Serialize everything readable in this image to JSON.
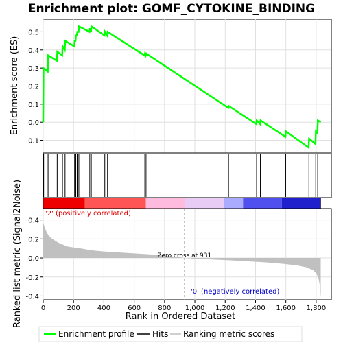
{
  "chart_data": {
    "type": "line",
    "title": "Enrichment plot: GOMF_CYTOKINE_BINDING",
    "es_panel": {
      "ylabel": "Enrichment score (ES)",
      "ylim": [
        -0.17,
        0.57
      ],
      "yticks": [
        "0.5",
        "0.4",
        "0.3",
        "0.2",
        "0.1",
        "0.0",
        "-0.1"
      ],
      "ytick_values": [
        0.5,
        0.4,
        0.3,
        0.2,
        0.1,
        0.0,
        -0.1
      ],
      "series_color": "#00ff00",
      "points": [
        [
          0,
          0.0
        ],
        [
          2,
          0.3
        ],
        [
          30,
          0.28
        ],
        [
          33,
          0.37
        ],
        [
          90,
          0.34
        ],
        [
          93,
          0.39
        ],
        [
          125,
          0.37
        ],
        [
          128,
          0.42
        ],
        [
          142,
          0.4
        ],
        [
          145,
          0.45
        ],
        [
          205,
          0.42
        ],
        [
          208,
          0.45
        ],
        [
          213,
          0.45
        ],
        [
          216,
          0.48
        ],
        [
          222,
          0.48
        ],
        [
          225,
          0.5
        ],
        [
          233,
          0.5
        ],
        [
          236,
          0.53
        ],
        [
          305,
          0.5
        ],
        [
          308,
          0.52
        ],
        [
          315,
          0.5
        ],
        [
          318,
          0.53
        ],
        [
          404,
          0.48
        ],
        [
          407,
          0.5
        ],
        [
          422,
          0.48
        ],
        [
          425,
          0.5
        ],
        [
          668,
          0.37
        ],
        [
          671,
          0.38
        ],
        [
          676,
          0.37
        ],
        [
          679,
          0.38
        ],
        [
          1220,
          0.08
        ],
        [
          1223,
          0.09
        ],
        [
          1405,
          -0.01
        ],
        [
          1408,
          0.01
        ],
        [
          1430,
          -0.01
        ],
        [
          1433,
          0.01
        ],
        [
          1597,
          -0.08
        ],
        [
          1600,
          -0.05
        ],
        [
          1750,
          -0.14
        ],
        [
          1753,
          -0.09
        ],
        [
          1795,
          -0.12
        ],
        [
          1798,
          -0.05
        ],
        [
          1808,
          -0.06
        ],
        [
          1811,
          0.01
        ],
        [
          1830,
          0.0
        ]
      ]
    },
    "hits": [
      3,
      32,
      92,
      127,
      144,
      207,
      215,
      224,
      235,
      307,
      317,
      406,
      424,
      670,
      678,
      1222,
      1407,
      1432,
      1599,
      1752,
      1797,
      1810
    ],
    "metric_panel": {
      "ylabel": "Ranked list metric (Signal2Noise)",
      "ylim": [
        -0.44,
        0.52
      ],
      "yticks": [
        "0.4",
        "0.2",
        "0.0",
        "-0.2",
        "-0.4"
      ],
      "ytick_values": [
        0.4,
        0.2,
        0.0,
        -0.2,
        -0.4
      ],
      "profile": [
        [
          0,
          0.37
        ],
        [
          10,
          0.32
        ],
        [
          20,
          0.28
        ],
        [
          30,
          0.25
        ],
        [
          45,
          0.22
        ],
        [
          60,
          0.2
        ],
        [
          80,
          0.18
        ],
        [
          100,
          0.16
        ],
        [
          130,
          0.14
        ],
        [
          160,
          0.12
        ],
        [
          200,
          0.11
        ],
        [
          250,
          0.1
        ],
        [
          300,
          0.085
        ],
        [
          350,
          0.075
        ],
        [
          400,
          0.068
        ],
        [
          500,
          0.058
        ],
        [
          600,
          0.048
        ],
        [
          700,
          0.038
        ],
        [
          800,
          0.025
        ],
        [
          900,
          0.008
        ],
        [
          931,
          0.0
        ],
        [
          1000,
          -0.008
        ],
        [
          1100,
          -0.015
        ],
        [
          1200,
          -0.022
        ],
        [
          1300,
          -0.03
        ],
        [
          1400,
          -0.04
        ],
        [
          1500,
          -0.05
        ],
        [
          1600,
          -0.065
        ],
        [
          1680,
          -0.08
        ],
        [
          1740,
          -0.1
        ],
        [
          1780,
          -0.13
        ],
        [
          1800,
          -0.16
        ],
        [
          1815,
          -0.21
        ],
        [
          1825,
          -0.3
        ],
        [
          1830,
          -0.42
        ]
      ],
      "zero_cross_label": "Zero cross at 931",
      "zero_cross_rank": 931,
      "pos_label": "'2' (positively correlated)",
      "neg_label": "'0' (negatively correlated)"
    },
    "x": {
      "label": "Rank in Ordered Dataset",
      "xlim": [
        0,
        1900
      ],
      "ticks": [
        "0",
        "200",
        "400",
        "600",
        "800",
        "1,000",
        "1,200",
        "1,400",
        "1,600",
        "1,800"
      ],
      "tick_values": [
        0,
        200,
        400,
        600,
        800,
        1000,
        1200,
        1400,
        1600,
        1800
      ],
      "n_genes": 1830
    },
    "legend": {
      "placement": "bottom",
      "items": [
        {
          "label": "Enrichment profile",
          "color": "#00ff00"
        },
        {
          "label": "Hits",
          "color": "#000000"
        },
        {
          "label": "Ranking metric scores",
          "color": "#c0c0c0"
        }
      ]
    },
    "colors": {
      "heatmap": [
        "#ee0000",
        "#ff5555",
        "#ffbbdd",
        "#e8ccf5",
        "#aaaaff",
        "#5050ee",
        "#2020cc"
      ]
    }
  }
}
